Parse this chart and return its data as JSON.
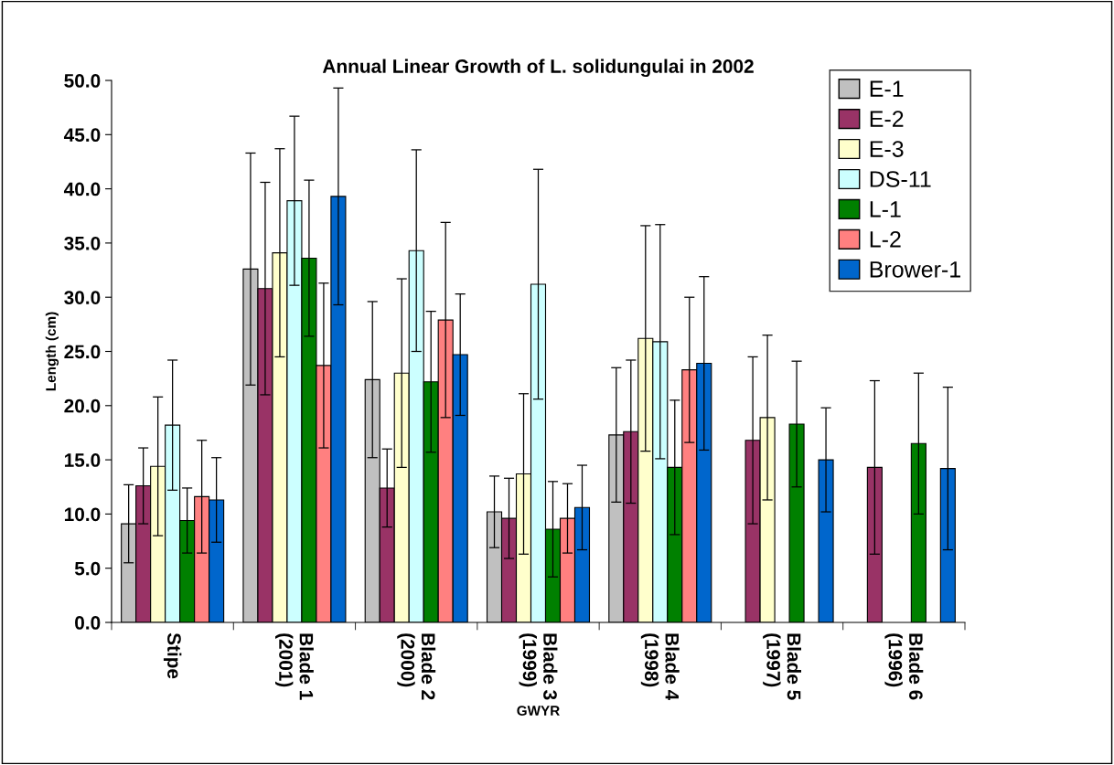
{
  "chart_data": {
    "type": "bar",
    "title": "Annual Linear Growth of L. solidungulai in 2002",
    "xlabel": "GWYR",
    "ylabel": "Length (cm)",
    "categories": [
      "Stipe",
      "Blade 1\n(2001)",
      "Blade 2\n(2000)",
      "Blade 3\n(1999)",
      "Blade 4\n(1998)",
      "Blade 5\n(1997)",
      "Blade 6\n(1996)"
    ],
    "series": [
      {
        "name": "E-1",
        "color": "#c0c0c0",
        "values": [
          9.1,
          32.6,
          22.4,
          10.2,
          17.3,
          null,
          null
        ],
        "errors": [
          3.6,
          10.7,
          7.2,
          3.3,
          6.2,
          null,
          null
        ]
      },
      {
        "name": "E-2",
        "color": "#993366",
        "values": [
          12.6,
          30.8,
          12.4,
          9.6,
          17.6,
          16.8,
          14.3
        ],
        "errors": [
          3.5,
          9.8,
          3.6,
          3.7,
          6.6,
          7.7,
          8.0
        ]
      },
      {
        "name": "E-3",
        "color": "#ffffcc",
        "values": [
          14.4,
          34.1,
          23.0,
          13.7,
          26.2,
          18.9,
          null
        ],
        "errors": [
          6.4,
          9.6,
          8.7,
          7.4,
          10.4,
          7.6,
          null
        ]
      },
      {
        "name": "DS-11",
        "color": "#ccffff",
        "values": [
          18.2,
          38.9,
          34.3,
          31.2,
          25.9,
          null,
          null
        ],
        "errors": [
          6.0,
          7.8,
          9.3,
          10.6,
          10.8,
          null,
          null
        ]
      },
      {
        "name": "L-1",
        "color": "#008000",
        "values": [
          9.4,
          33.6,
          22.2,
          8.6,
          14.3,
          18.3,
          16.5
        ],
        "errors": [
          3.0,
          7.2,
          6.5,
          4.4,
          6.2,
          5.8,
          6.5
        ]
      },
      {
        "name": "L-2",
        "color": "#ff8080",
        "values": [
          11.6,
          23.7,
          27.9,
          9.6,
          23.3,
          null,
          null
        ],
        "errors": [
          5.2,
          7.6,
          9.0,
          3.2,
          6.7,
          null,
          null
        ]
      },
      {
        "name": "Brower-1",
        "color": "#0066cc",
        "values": [
          11.3,
          39.3,
          24.7,
          10.6,
          23.9,
          15.0,
          14.2
        ],
        "errors": [
          3.9,
          10.0,
          5.6,
          3.9,
          8.0,
          4.8,
          7.5
        ]
      }
    ],
    "ylim": [
      0,
      50
    ],
    "yticks": [
      {
        "value": 0,
        "label": "0.0"
      },
      {
        "value": 5,
        "label": "5.0"
      },
      {
        "value": 10,
        "label": "10.0"
      },
      {
        "value": 15,
        "label": "15.0"
      },
      {
        "value": 20,
        "label": "20.0"
      },
      {
        "value": 25,
        "label": "25.0"
      },
      {
        "value": 30,
        "label": "30.0"
      },
      {
        "value": 35,
        "label": "35.0"
      },
      {
        "value": 40,
        "label": "40.0"
      },
      {
        "value": 45,
        "label": "45.0"
      },
      {
        "value": 50,
        "label": "50.0"
      }
    ],
    "grid": false,
    "legend": "top right"
  }
}
